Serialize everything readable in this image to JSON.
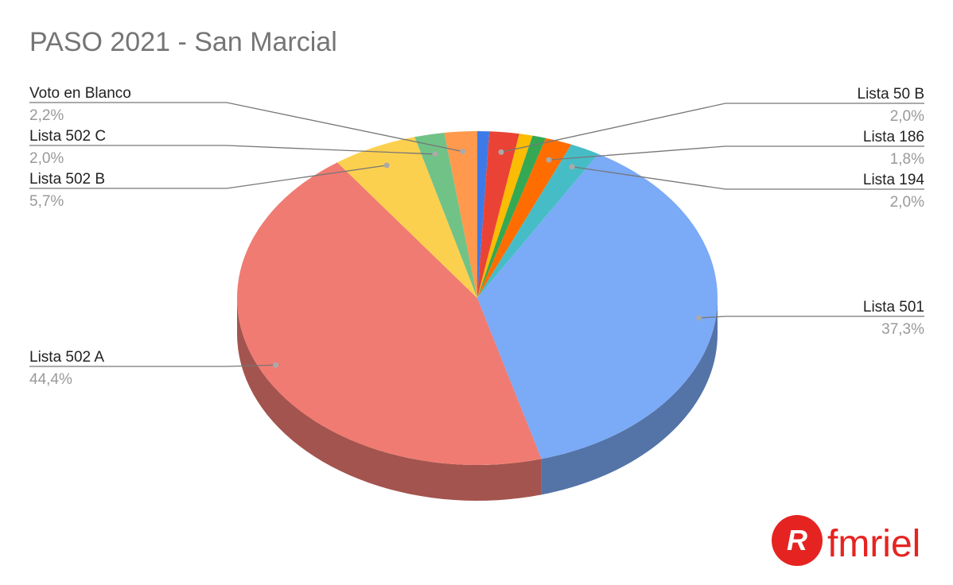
{
  "chart_data": {
    "type": "pie3d",
    "title": "PASO 2021 - San Marcial",
    "categories": [
      null,
      "Lista 50 B",
      null,
      null,
      "Lista 186",
      "Lista 194",
      "Lista 501",
      "Lista 502 A",
      "Lista 502 B",
      "Lista 502 C",
      "Voto en Blanco"
    ],
    "values": [
      0.8,
      2.0,
      0.9,
      0.9,
      1.8,
      2.0,
      37.3,
      44.4,
      5.7,
      2.0,
      2.2
    ],
    "value_labels": [
      null,
      "2,0%",
      null,
      null,
      "1,8%",
      "2,0%",
      "37,3%",
      "44,4%",
      "5,7%",
      "2,0%",
      "2,2%"
    ],
    "colors": [
      "#3d7ae8",
      "#ea4335",
      "#fbbc04",
      "#34a853",
      "#ff6d01",
      "#46bdc6",
      "#7baaf7",
      "#f07b72",
      "#fcd04f",
      "#71c287",
      "#ff994d"
    ]
  },
  "logo": "fmriel"
}
